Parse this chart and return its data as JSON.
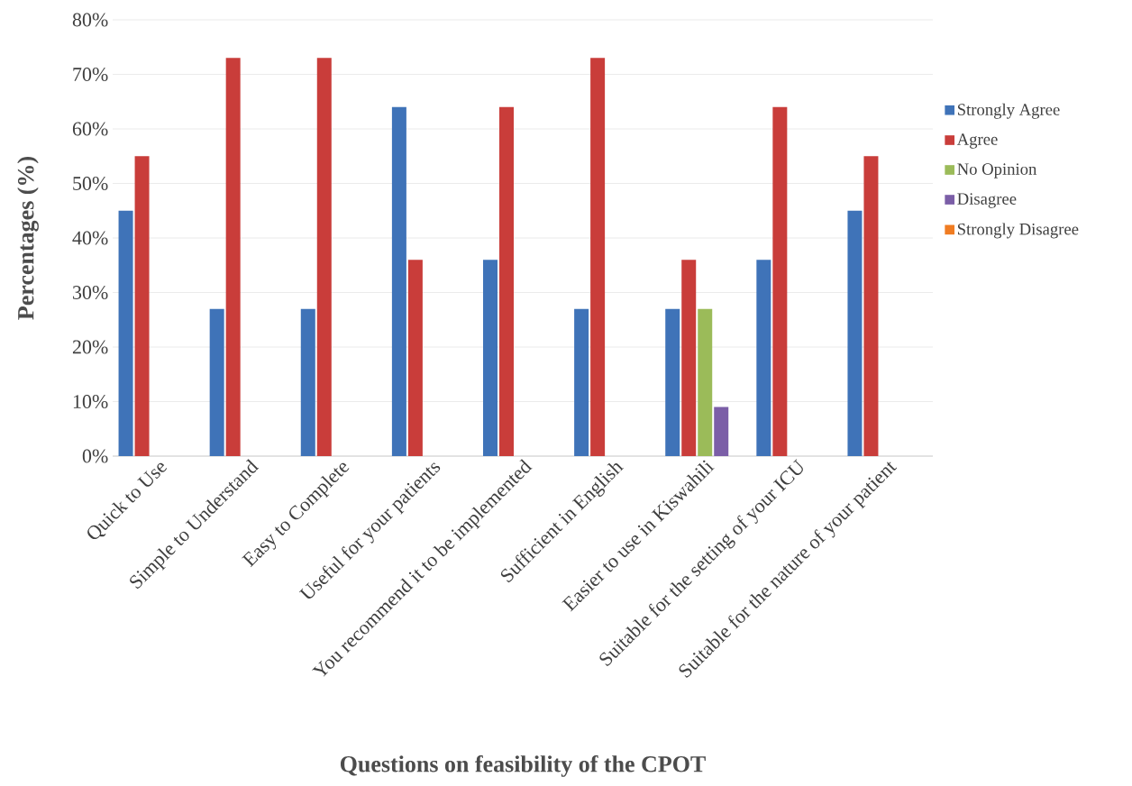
{
  "chart_data": {
    "type": "bar",
    "xlabel": "Questions on feasibility of the CPOT",
    "ylabel": "Percentages (%)",
    "categories": [
      "Quick to Use",
      "Simple to Understand",
      "Easy to Complete",
      "Useful for your patients",
      "You recommend it to be implemented",
      "Sufficient in English",
      "Easier to use in Kiswahili",
      "Suitable for the setting of your ICU",
      "Suitable for the nature of your patient"
    ],
    "series": [
      {
        "name": "Strongly Agree",
        "color": "#3f73b8",
        "values": [
          45,
          27,
          27,
          64,
          36,
          27,
          27,
          36,
          45
        ]
      },
      {
        "name": "Agree",
        "color": "#c93d3a",
        "values": [
          55,
          73,
          73,
          36,
          64,
          73,
          36,
          64,
          55
        ]
      },
      {
        "name": "No Opinion",
        "color": "#9bbb59",
        "values": [
          0,
          0,
          0,
          0,
          0,
          0,
          27,
          0,
          0
        ]
      },
      {
        "name": "Disagree",
        "color": "#7b5ea7",
        "values": [
          0,
          0,
          0,
          0,
          0,
          0,
          9,
          0,
          0
        ]
      },
      {
        "name": "Strongly Disagree",
        "color": "#f07c22",
        "values": [
          0,
          0,
          0,
          0,
          0,
          0,
          0,
          0,
          0
        ]
      }
    ],
    "ylim": [
      0,
      80
    ],
    "yticks": [
      {
        "value": 0,
        "label": "0%"
      },
      {
        "value": 10,
        "label": "10%"
      },
      {
        "value": 20,
        "label": "20%"
      },
      {
        "value": 30,
        "label": "30%"
      },
      {
        "value": 40,
        "label": "40%"
      },
      {
        "value": 50,
        "label": "50%"
      },
      {
        "value": 60,
        "label": "60%"
      },
      {
        "value": 70,
        "label": "70%"
      },
      {
        "value": 80,
        "label": "80%"
      }
    ],
    "grid": "y",
    "legend": "right"
  }
}
